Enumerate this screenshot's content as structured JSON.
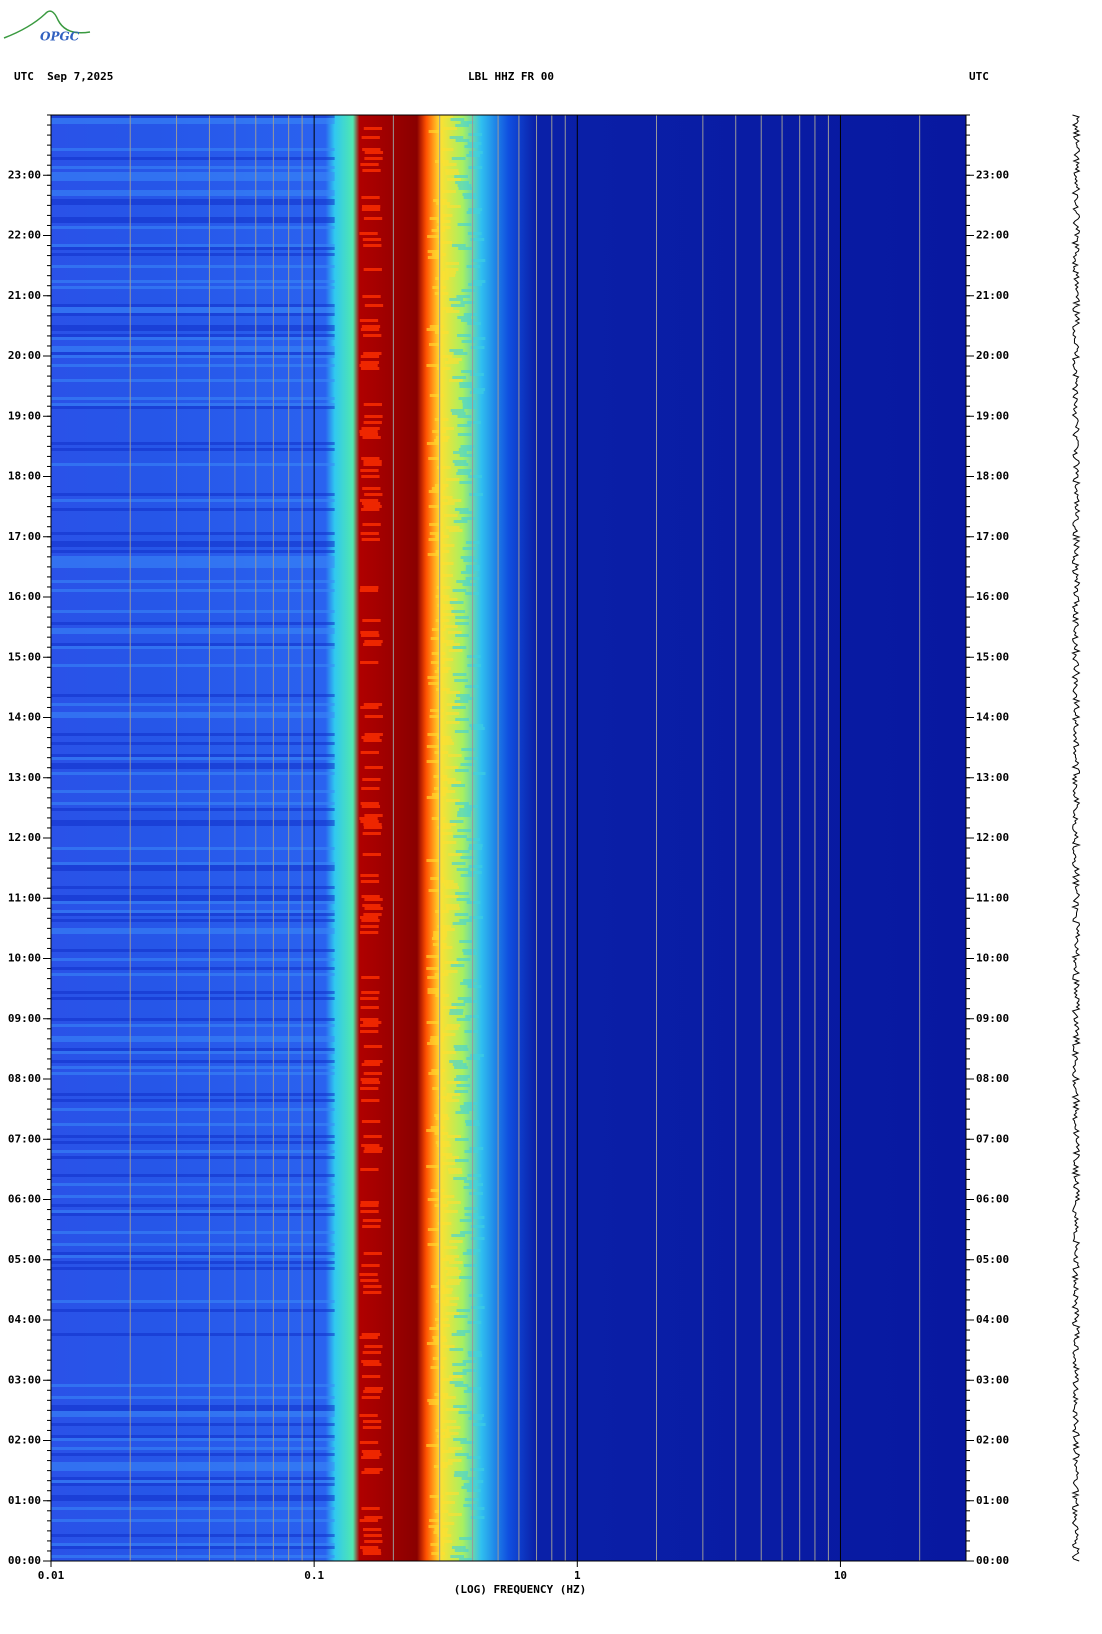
{
  "logo": "OPGC",
  "chart_data": {
    "type": "spectrogram",
    "title": "LBL HHZ FR 00",
    "title_left": "UTC  Sep 7,2025",
    "title_right": "UTC",
    "x_label": "(LOG) FREQUENCY (HZ)",
    "x_scale": "log",
    "xlim": [
      0.01,
      30
    ],
    "xticks": [
      0.01,
      0.1,
      1,
      10
    ],
    "ylim": [
      0,
      24
    ],
    "yticks": [
      {
        "value": 0,
        "label": "00:00"
      },
      {
        "value": 1,
        "label": "01:00"
      },
      {
        "value": 2,
        "label": "02:00"
      },
      {
        "value": 3,
        "label": "03:00"
      },
      {
        "value": 4,
        "label": "04:00"
      },
      {
        "value": 5,
        "label": "05:00"
      },
      {
        "value": 6,
        "label": "06:00"
      },
      {
        "value": 7,
        "label": "07:00"
      },
      {
        "value": 8,
        "label": "08:00"
      },
      {
        "value": 9,
        "label": "09:00"
      },
      {
        "value": 10,
        "label": "10:00"
      },
      {
        "value": 11,
        "label": "11:00"
      },
      {
        "value": 12,
        "label": "12:00"
      },
      {
        "value": 13,
        "label": "13:00"
      },
      {
        "value": 14,
        "label": "14:00"
      },
      {
        "value": 15,
        "label": "15:00"
      },
      {
        "value": 16,
        "label": "16:00"
      },
      {
        "value": 17,
        "label": "17:00"
      },
      {
        "value": 18,
        "label": "18:00"
      },
      {
        "value": 19,
        "label": "19:00"
      },
      {
        "value": 20,
        "label": "20:00"
      },
      {
        "value": 21,
        "label": "21:00"
      },
      {
        "value": 22,
        "label": "22:00"
      },
      {
        "value": 23,
        "label": "23:00"
      }
    ],
    "grid": true,
    "grid_color": "#9a9a9a",
    "major_grid_color": "#000000"
  }
}
